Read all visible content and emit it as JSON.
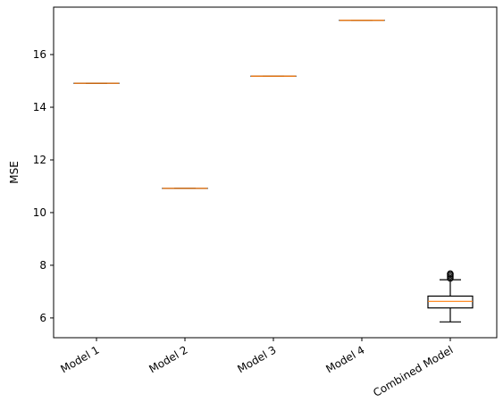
{
  "chart_data": {
    "type": "box",
    "title": "",
    "xlabel": "",
    "ylabel": "MSE",
    "ylim": [
      5.25,
      17.8
    ],
    "yticks": [
      6,
      8,
      10,
      12,
      14,
      16
    ],
    "grid": false,
    "categories": [
      "Model 1",
      "Model 2",
      "Model 3",
      "Model 4",
      "Combined Model"
    ],
    "boxes": [
      {
        "whislo": 14.91,
        "q1": 14.91,
        "med": 14.91,
        "q3": 14.91,
        "whishi": 14.91,
        "fliers": []
      },
      {
        "whislo": 10.92,
        "q1": 10.92,
        "med": 10.92,
        "q3": 10.92,
        "whishi": 10.92,
        "fliers": []
      },
      {
        "whislo": 15.18,
        "q1": 15.18,
        "med": 15.18,
        "q3": 15.18,
        "whishi": 15.18,
        "fliers": []
      },
      {
        "whislo": 17.3,
        "q1": 17.3,
        "med": 17.3,
        "q3": 17.3,
        "whishi": 17.3,
        "fliers": []
      },
      {
        "whislo": 5.85,
        "q1": 6.38,
        "med": 6.63,
        "q3": 6.83,
        "whishi": 7.45,
        "fliers": [
          7.5,
          7.55,
          7.6,
          7.65,
          7.68
        ]
      }
    ],
    "colors": {
      "box": "#000000",
      "median": "#ff7f0e",
      "flier": "#000000"
    }
  }
}
